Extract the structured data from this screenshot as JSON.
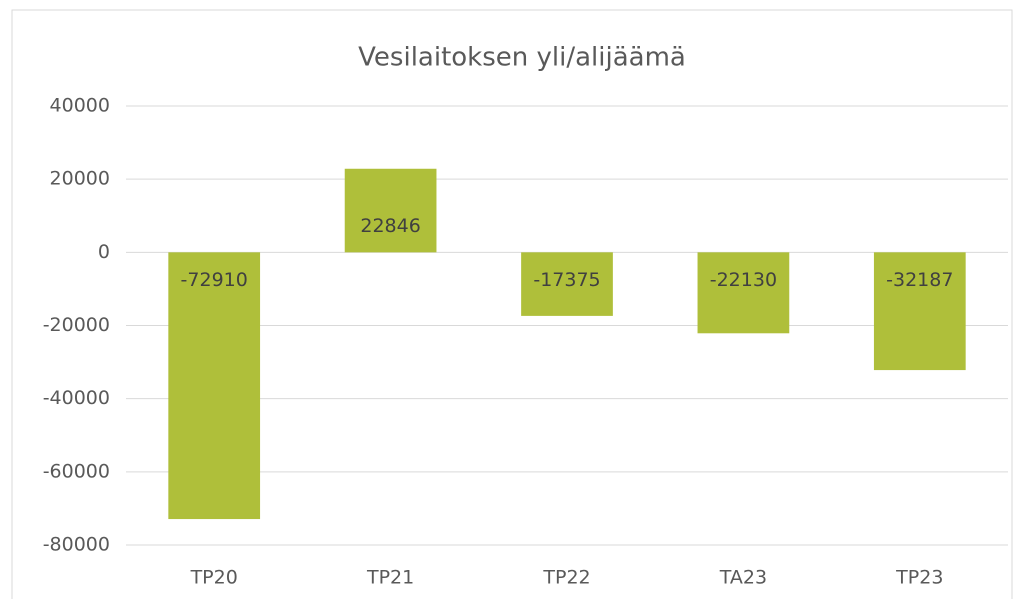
{
  "chart_data": {
    "type": "bar",
    "title": "Vesilaitoksen yli/alijäämä",
    "categories": [
      "TP20",
      "TP21",
      "TP22",
      "TA23",
      "TP23"
    ],
    "values": [
      -72910,
      22846,
      -17375,
      -22130,
      -32187
    ],
    "color": "#afbf3a",
    "ylim": [
      -80000,
      40000
    ],
    "yticks": [
      -80000,
      -60000,
      -40000,
      -20000,
      0,
      20000,
      40000
    ],
    "grid": true
  }
}
